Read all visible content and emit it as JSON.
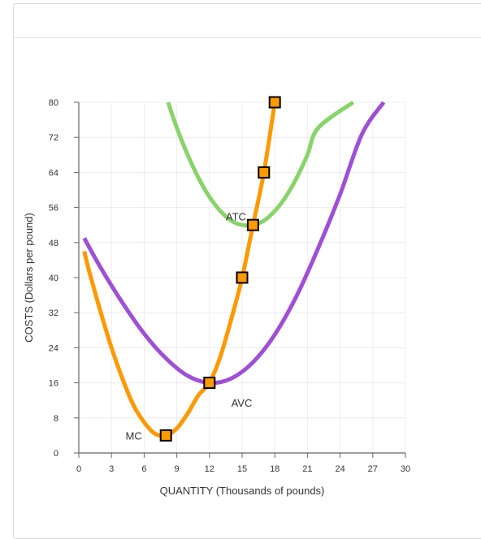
{
  "chart_data": {
    "type": "line",
    "xlabel": "QUANTITY (Thousands of pounds)",
    "ylabel": "COSTS (Dollars per pound)",
    "xlim": [
      0,
      30
    ],
    "ylim": [
      0,
      80
    ],
    "x_ticks": [
      0,
      3,
      6,
      9,
      12,
      15,
      18,
      21,
      24,
      27,
      30
    ],
    "y_ticks": [
      0,
      8,
      16,
      24,
      32,
      40,
      48,
      56,
      64,
      72,
      80
    ],
    "grid": true,
    "series": [
      {
        "name": "MC",
        "color": "#ff9900",
        "label_point": [
          5.8,
          4
        ],
        "x": [
          0.5,
          1,
          2,
          3,
          4,
          5,
          6,
          7,
          8,
          9,
          10,
          11,
          12,
          13,
          14,
          15,
          16,
          17,
          18
        ],
        "y": [
          46,
          41,
          32.2,
          24,
          17,
          11,
          7,
          4.4,
          4,
          5.6,
          9,
          13.2,
          16,
          22,
          30.5,
          40,
          52,
          64,
          80
        ],
        "markers": [
          {
            "x": 8,
            "y": 4
          },
          {
            "x": 12,
            "y": 16
          },
          {
            "x": 15,
            "y": 40
          },
          {
            "x": 16,
            "y": 52
          },
          {
            "x": 17,
            "y": 64
          },
          {
            "x": 18,
            "y": 80
          }
        ]
      },
      {
        "name": "AVC",
        "color": "#9e4fd6",
        "label_point": [
          14,
          11.5
        ],
        "x": [
          0.5,
          2,
          4,
          6,
          8,
          10,
          12,
          14,
          16,
          18,
          20,
          22,
          24,
          26,
          28
        ],
        "y": [
          49,
          42.3,
          34.3,
          27.2,
          21.6,
          17.6,
          16,
          17,
          20.7,
          27,
          35.8,
          46.8,
          59,
          72.7,
          80
        ]
      },
      {
        "name": "ATC",
        "color": "#88d46a",
        "label_point": [
          13.5,
          54
        ],
        "x": [
          8.2,
          9,
          10,
          11,
          12,
          13,
          14,
          15,
          16,
          17,
          18,
          19,
          20,
          21,
          22,
          23,
          24,
          25.2
        ],
        "y": [
          80,
          74.2,
          68,
          62.7,
          58.4,
          55.2,
          53,
          52,
          52,
          53,
          55.2,
          58.4,
          62.7,
          68,
          74.2,
          80.5,
          80.5,
          80
        ]
      }
    ]
  }
}
